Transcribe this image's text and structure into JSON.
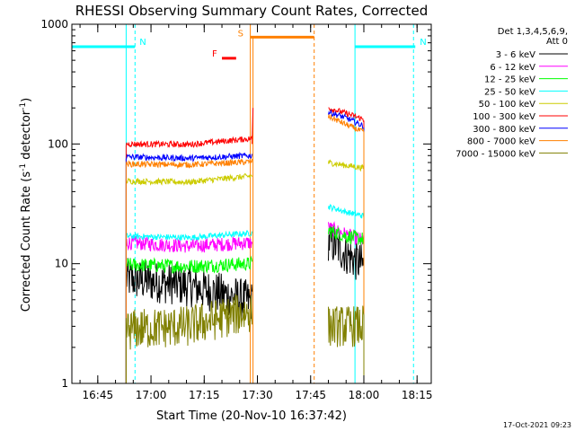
{
  "chart_data": {
    "type": "line",
    "title": "RHESSI Observing Summary Count Rates, Corrected",
    "xlabel": "Start Time (20-Nov-10 16:37:42)",
    "ylabel_main": "Corrected Count Rate (s",
    "ylabel_sup1": "-1",
    "ylabel_mid": " detector",
    "ylabel_sup2": "-1",
    "ylabel_end": ")",
    "y_scale": "log",
    "ylim": [
      1,
      1000
    ],
    "xlim": [
      "16:37:42",
      "18:19:00"
    ],
    "x_ticks": [
      "16:45",
      "17:00",
      "17:15",
      "17:30",
      "17:45",
      "18:00",
      "18:15"
    ],
    "y_ticks": [
      "1",
      "10",
      "100",
      "1000"
    ],
    "legend_title": [
      "Det 1,3,4,5,6,9,",
      "Att 0"
    ],
    "legend_position": "right",
    "timestamp": "17-Oct-2021 09:23",
    "series": [
      {
        "name": "3 - 6 keV",
        "color": "#000000",
        "pre": [
          7.5,
          6.5,
          4.8
        ],
        "post": [
          15.5,
          12,
          9.5
        ]
      },
      {
        "name": "6 - 12 keV",
        "color": "#ff00ff",
        "pre": [
          15,
          14,
          15
        ],
        "post": [
          20,
          17.5,
          15.5
        ]
      },
      {
        "name": "12 - 25 keV",
        "color": "#00ff00",
        "pre": [
          9.8,
          9.5,
          10
        ],
        "post": [
          19,
          17,
          16
        ]
      },
      {
        "name": "25 - 50 keV",
        "color": "#00ffff",
        "pre": [
          17,
          16.5,
          18
        ],
        "post": [
          30,
          27,
          25
        ]
      },
      {
        "name": "50 - 100 keV",
        "color": "#cccc00",
        "pre": [
          49,
          48,
          54
        ],
        "post": [
          70,
          66,
          63
        ]
      },
      {
        "name": "100 - 300 keV",
        "color": "#ff0000",
        "pre": [
          100,
          99,
          111
        ],
        "post": [
          200,
          180,
          160
        ]
      },
      {
        "name": "300 - 800 keV",
        "color": "#0000ff",
        "pre": [
          78,
          76,
          80
        ],
        "post": [
          185,
          165,
          140
        ]
      },
      {
        "name": "800 - 7000 keV",
        "color": "#ff8000",
        "pre": [
          68,
          67,
          71
        ],
        "post": [
          170,
          145,
          125
        ]
      },
      {
        "name": "7000 - 15000 keV",
        "color": "#808000",
        "pre": [
          2.8,
          3.0,
          4.0
        ],
        "post": [
          3.0,
          3.0,
          3.0
        ]
      }
    ],
    "segments": {
      "pre": [
        "16:53:00",
        "17:28:30"
      ],
      "post": [
        "17:50:00",
        "18:00:00"
      ]
    },
    "spike_at": "17:28:30",
    "spike_value": 200,
    "annotations": [
      {
        "label": "N",
        "color": "#00ffff",
        "value": 650,
        "from": "16:37:42",
        "to": "16:55:30"
      },
      {
        "label": "N",
        "color": "#00ffff",
        "value": 650,
        "from": "17:57:30",
        "to": "18:14:30"
      },
      {
        "label": "S",
        "color": "#ff8000",
        "value": 780,
        "from": "17:28:00",
        "to": "17:46:00"
      },
      {
        "label": "F",
        "color": "#ff0000",
        "value": 520,
        "from": "17:20:00",
        "to": "17:24:00"
      }
    ],
    "vlines_cyan": [
      "16:53:00",
      "16:55:30",
      "17:57:30",
      "18:14:00"
    ],
    "vlines_orange": [
      "17:28:00",
      "17:46:00"
    ],
    "orange_solid_x": "17:28:00"
  }
}
